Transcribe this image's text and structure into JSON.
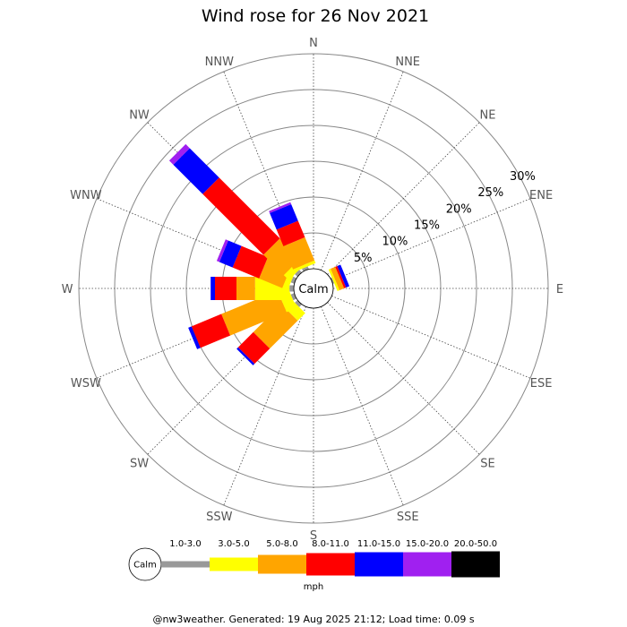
{
  "chart_data": {
    "type": "wind-rose",
    "title": "Wind rose for 26 Nov 2021",
    "directions": [
      "N",
      "NNE",
      "NE",
      "ENE",
      "E",
      "ESE",
      "SE",
      "SSE",
      "S",
      "SSW",
      "SW",
      "WSW",
      "W",
      "WNW",
      "NW",
      "NNW"
    ],
    "radial_ticks": [
      "5%",
      "10%",
      "15%",
      "20%",
      "25%",
      "30%"
    ],
    "radial_max_percent": 30,
    "calm_label": "Calm",
    "speed_bins": [
      "1.0-3.0",
      "3.0-5.0",
      "5.0-8.0",
      "8.0-11.0",
      "11.0-15.0",
      "15.0-20.0",
      "20.0-50.0"
    ],
    "bin_colors": [
      "#999999",
      "#ffff00",
      "#ffa500",
      "#ff0000",
      "#0000ff",
      "#a020f0",
      "#000000"
    ],
    "units": "mph",
    "series": [
      {
        "direction": "N",
        "values": [
          0.0,
          0.0,
          0.0,
          0.0,
          0.0,
          0.0,
          0.0
        ]
      },
      {
        "direction": "NNE",
        "values": [
          0.0,
          0.0,
          0.0,
          0.0,
          0.0,
          0.0,
          0.0
        ]
      },
      {
        "direction": "NE",
        "values": [
          0.0,
          0.0,
          0.0,
          0.0,
          0.0,
          0.0,
          0.0
        ]
      },
      {
        "direction": "ENE",
        "values": [
          0.2,
          0.3,
          0.7,
          0.3,
          0.5,
          0.0,
          0.0
        ]
      },
      {
        "direction": "E",
        "values": [
          0.0,
          0.0,
          0.0,
          0.0,
          0.0,
          0.0,
          0.0
        ]
      },
      {
        "direction": "ESE",
        "values": [
          0.0,
          0.0,
          0.0,
          0.0,
          0.0,
          0.0,
          0.0
        ]
      },
      {
        "direction": "SE",
        "values": [
          0.0,
          0.0,
          0.0,
          0.0,
          0.0,
          0.0,
          0.0
        ]
      },
      {
        "direction": "SSE",
        "values": [
          0.0,
          0.0,
          0.0,
          0.0,
          0.0,
          0.0,
          0.0
        ]
      },
      {
        "direction": "S",
        "values": [
          0.0,
          0.0,
          0.0,
          0.0,
          0.0,
          0.0,
          0.0
        ]
      },
      {
        "direction": "SSW",
        "values": [
          0.0,
          0.0,
          0.0,
          0.0,
          0.0,
          0.0,
          0.0
        ]
      },
      {
        "direction": "SW",
        "values": [
          0.5,
          1.5,
          5.5,
          3.0,
          0.3,
          0.0,
          0.0
        ]
      },
      {
        "direction": "WSW",
        "values": [
          0.5,
          1.5,
          8.5,
          4.5,
          0.5,
          0.0,
          0.0
        ]
      },
      {
        "direction": "W",
        "values": [
          0.6,
          4.8,
          2.6,
          3.0,
          0.6,
          0.0,
          0.0
        ]
      },
      {
        "direction": "WNW",
        "values": [
          0.5,
          0.8,
          3.5,
          4.0,
          2.0,
          0.4,
          0.0
        ]
      },
      {
        "direction": "NW",
        "values": [
          0.5,
          1.0,
          4.0,
          12.0,
          5.8,
          0.8,
          0.0
        ]
      },
      {
        "direction": "NNW",
        "values": [
          0.4,
          0.4,
          3.5,
          2.5,
          2.5,
          0.3,
          0.0
        ]
      }
    ]
  },
  "footer": "@nw3weather. Generated: 19 Aug 2025 21:12; Load time: 0.09 s"
}
